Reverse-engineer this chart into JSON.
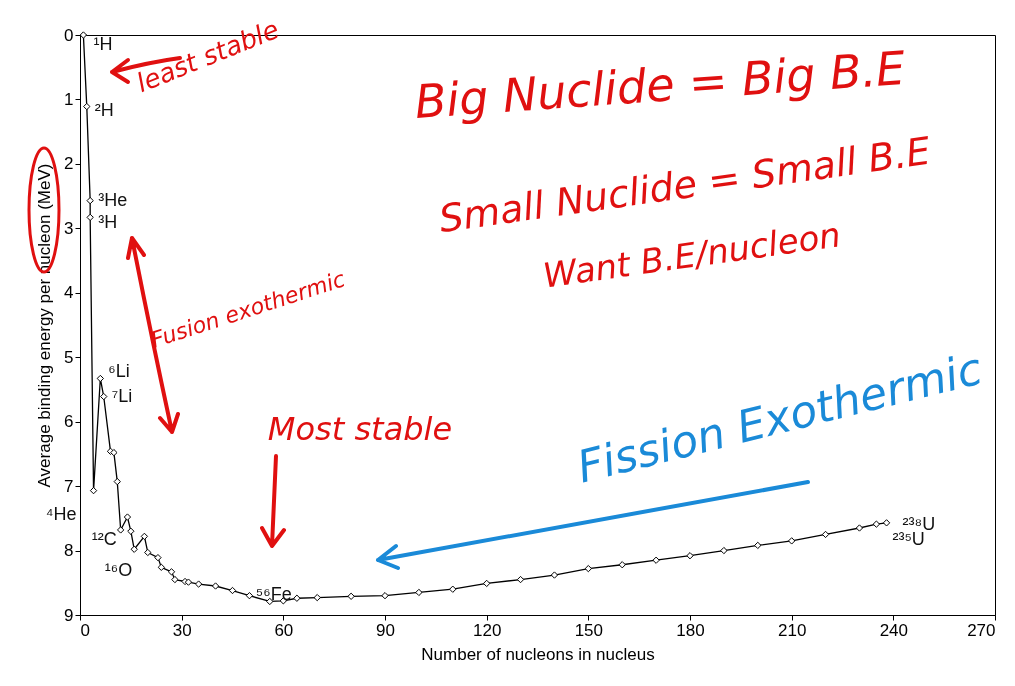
{
  "chart_data": {
    "type": "line",
    "xlabel": "Number of nucleons in nucleus",
    "ylabel": "Average binding energy per nucleon (MeV)",
    "xlim": [
      0,
      270
    ],
    "xticks": [
      0,
      30,
      60,
      90,
      120,
      150,
      180,
      210,
      240,
      270
    ],
    "ylim": [
      9,
      0
    ],
    "yticks": [
      0,
      1,
      2,
      3,
      4,
      5,
      6,
      7,
      8,
      9
    ],
    "grid": false,
    "marker": "diamond",
    "series": [
      {
        "color": "#000000",
        "x": [
          1,
          2,
          3,
          3,
          4,
          6,
          7,
          9,
          10,
          11,
          12,
          14,
          15,
          16,
          19,
          20,
          23,
          24,
          27,
          28,
          31,
          32,
          35,
          40,
          45,
          50,
          56,
          60,
          64,
          70,
          80,
          90,
          100,
          110,
          120,
          130,
          140,
          150,
          160,
          170,
          180,
          190,
          200,
          210,
          220,
          230,
          235,
          238
        ],
        "values": [
          0,
          1.11,
          2.57,
          2.83,
          7.07,
          5.33,
          5.61,
          6.46,
          6.48,
          6.93,
          7.68,
          7.48,
          7.7,
          7.98,
          7.78,
          8.03,
          8.11,
          8.26,
          8.33,
          8.45,
          8.48,
          8.49,
          8.52,
          8.55,
          8.62,
          8.7,
          8.79,
          8.78,
          8.74,
          8.73,
          8.71,
          8.7,
          8.65,
          8.6,
          8.51,
          8.45,
          8.38,
          8.28,
          8.22,
          8.15,
          8.08,
          8.0,
          7.92,
          7.85,
          7.75,
          7.65,
          7.59,
          7.57
        ]
      }
    ],
    "annotations": [
      {
        "text": "¹H",
        "x": 1,
        "y": 0
      },
      {
        "text": "²H",
        "x": 2,
        "y": 1.11
      },
      {
        "text": "³He",
        "x": 3,
        "y": 2.57
      },
      {
        "text": "³H",
        "x": 3,
        "y": 2.83
      },
      {
        "text": "⁶Li",
        "x": 6,
        "y": 5.33
      },
      {
        "text": "⁷Li",
        "x": 7,
        "y": 5.61
      },
      {
        "text": "⁴He",
        "x": 4,
        "y": 7.07
      },
      {
        "text": "¹²C",
        "x": 12,
        "y": 7.68
      },
      {
        "text": "¹⁶O",
        "x": 16,
        "y": 7.98
      },
      {
        "text": "⁵⁶Fe",
        "x": 56,
        "y": 8.79
      },
      {
        "text": "²³⁸U",
        "x": 238,
        "y": 7.57
      },
      {
        "text": "²³⁵U",
        "x": 235,
        "y": 7.59
      },
      "least stable",
      "Big Nuclide = Big B.E",
      "Small Nuclide = Small B.E",
      "Want B.E/nucleon",
      "Fusion exothermic",
      "Most stable",
      "Fission Exothermic"
    ]
  }
}
